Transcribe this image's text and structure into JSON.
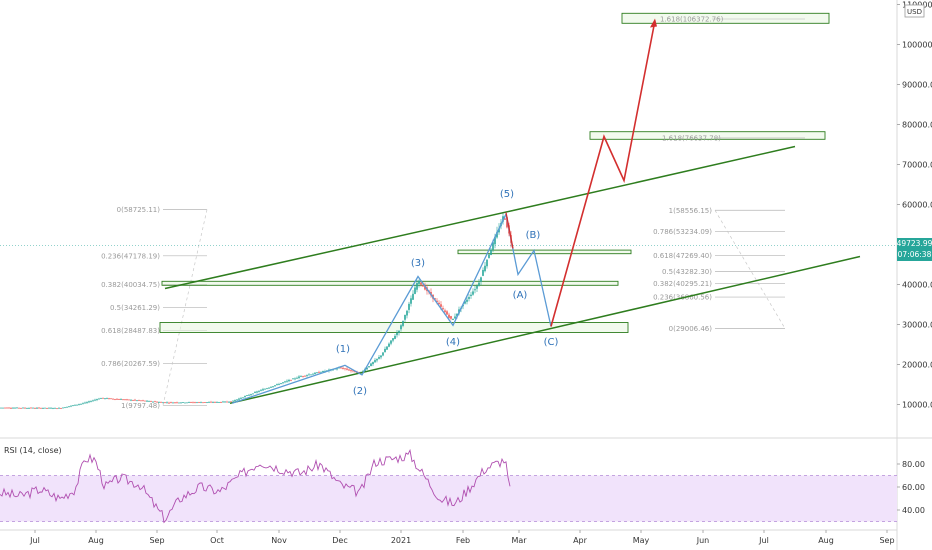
{
  "chart_data": {
    "type": "line",
    "currency_label": "USD",
    "price_axis": {
      "ticks": [
        "110000.00",
        "100000.00",
        "90000.00",
        "80000.00",
        "70000.00",
        "60000.00",
        "50000.00",
        "40000.00",
        "30000.00",
        "20000.00",
        "10000.00"
      ],
      "tick_values": [
        110000,
        100000,
        90000,
        80000,
        70000,
        60000,
        50000,
        40000,
        30000,
        20000,
        10000
      ]
    },
    "time_axis": {
      "ticks": [
        "Jul",
        "Aug",
        "Sep",
        "Oct",
        "Nov",
        "Dec",
        "2021",
        "Feb",
        "Mar",
        "Apr",
        "May",
        "Jun",
        "Jul",
        "Aug",
        "Sep"
      ]
    },
    "last_price": {
      "value": "49723.99",
      "countdown": "07:06:38",
      "color": "#26a69a"
    },
    "fib_left": [
      {
        "label": "0(58725.11)",
        "value": 58725
      },
      {
        "label": "0.236(47178.19)",
        "value": 47178
      },
      {
        "label": "0.382(40034.75)",
        "value": 40035
      },
      {
        "label": "0.5(34261.29)",
        "value": 34261
      },
      {
        "label": "0.618(28487.83)",
        "value": 28488
      },
      {
        "label": "0.786(20267.59)",
        "value": 20268
      },
      {
        "label": "1(9797.48)",
        "value": 9797
      }
    ],
    "fib_right": [
      {
        "label": "1(58556.15)",
        "value": 58556
      },
      {
        "label": "0.786(53234.09)",
        "value": 53234
      },
      {
        "label": "0.618(47269.40)",
        "value": 47269
      },
      {
        "label": "0.5(43282.30)",
        "value": 43282
      },
      {
        "label": "0.382(40295.21)",
        "value": 40295
      },
      {
        "label": "0.236(36860.56)",
        "value": 36861
      },
      {
        "label": "0(29006.46)",
        "value": 29006
      }
    ],
    "fib_extensions": [
      {
        "label": "1.618(106372.76)",
        "value": 106373
      },
      {
        "label": "1.618(76637.78)",
        "value": 76638
      }
    ],
    "wave_labels": [
      "(1)",
      "(2)",
      "(3)",
      "(4)",
      "(5)",
      "(A)",
      "(B)",
      "(C)"
    ],
    "rsi": {
      "title": "RSI (14, close)",
      "ticks": [
        "80.00",
        "60.00",
        "40.00"
      ],
      "tick_values": [
        80,
        60,
        40
      ],
      "upper_band": 70,
      "lower_band": 30
    },
    "colors": {
      "up": "#26a69a",
      "down": "#ef5350",
      "channel": "#2e7d1e",
      "projection": "#d32f2f",
      "wave": "#5b9bd5",
      "rsi_line": "#b04fb0",
      "rsi_fill": "#f1e3fb"
    }
  }
}
